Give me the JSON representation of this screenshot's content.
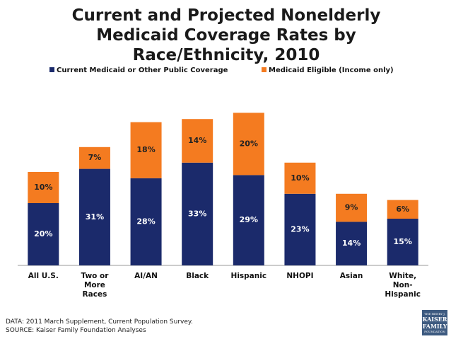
{
  "chart_data": {
    "type": "stacked-bar",
    "title": "Current and Projected Nonelderly Medicaid Coverage Rates by Race/Ethnicity, 2010",
    "categories": [
      "All U.S.",
      "Two or More Races",
      "AI/AN",
      "Black",
      "Hispanic",
      "NHOPI",
      "Asian",
      "White, Non-Hispanic"
    ],
    "series": [
      {
        "name": "Current Medicaid or Other Public Coverage",
        "color": "#1b2a6b",
        "values": [
          20,
          31,
          28,
          33,
          29,
          23,
          14,
          15
        ],
        "value_labels": [
          "20%",
          "31%",
          "28%",
          "33%",
          "29%",
          "23%",
          "14%",
          "15%"
        ]
      },
      {
        "name": "Medicaid Eligible (Income only)",
        "color": "#f47b20",
        "values": [
          10,
          7,
          18,
          14,
          20,
          10,
          9,
          6
        ],
        "value_labels": [
          "10%",
          "7%",
          "18%",
          "14%",
          "20%",
          "10%",
          "9%",
          "6%"
        ]
      }
    ],
    "ylim": [
      0,
      50
    ]
  },
  "footer": {
    "data_note": "DATA:  2011 March Supplement, Current Population Survey.",
    "source": "SOURCE:  Kaiser Family Foundation Analyses"
  },
  "logo": {
    "line1": "THE HENRY J.",
    "line2": "KAISER",
    "line3": "FAMILY",
    "line4": "FOUNDATION"
  }
}
